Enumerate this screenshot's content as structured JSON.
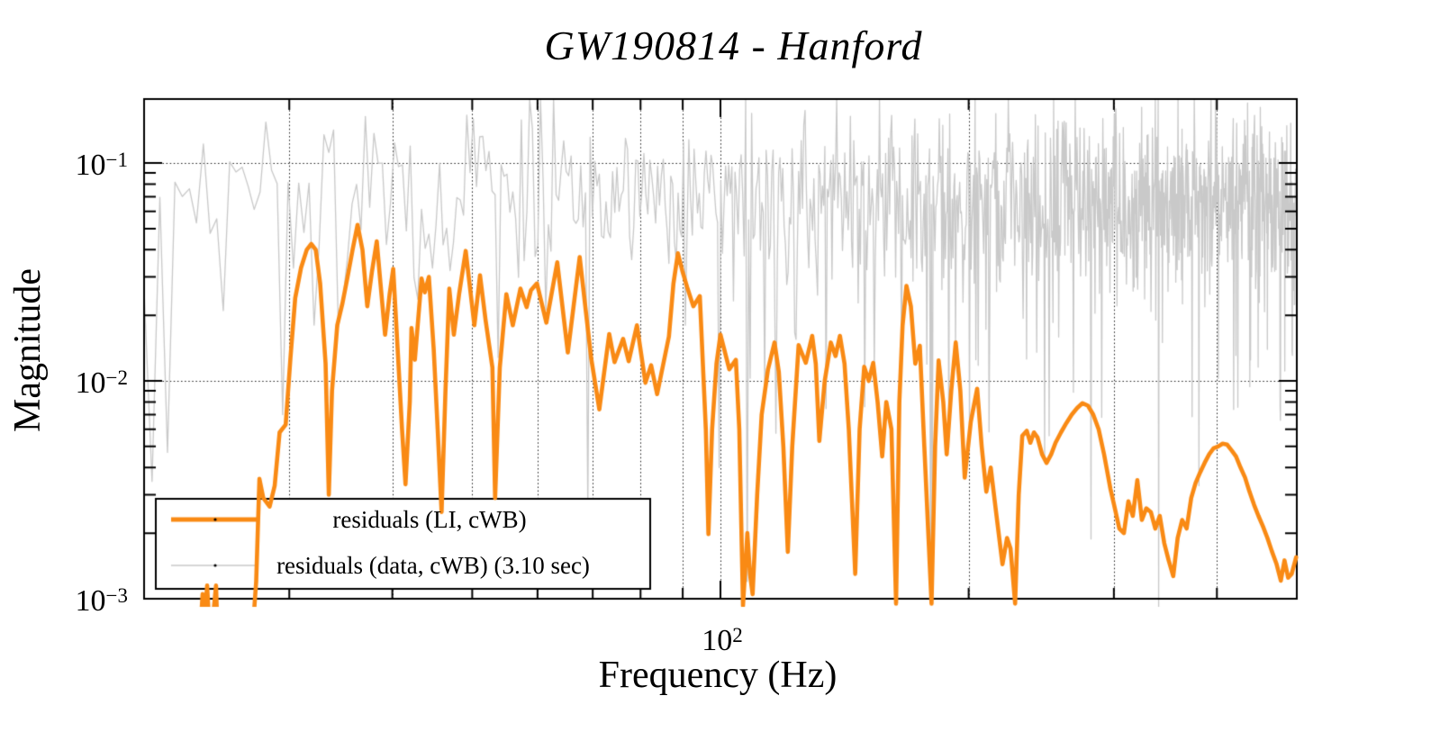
{
  "title": "GW190814 - Hanford",
  "axes": {
    "x_label": "Frequency (Hz)",
    "y_label": "Magnitude",
    "x_tick": {
      "base": "10",
      "exp": "2"
    },
    "y_ticks": [
      {
        "base": "10",
        "exp": "−1"
      },
      {
        "base": "10",
        "exp": "−2"
      },
      {
        "base": "10",
        "exp": "−3"
      }
    ]
  },
  "legend": {
    "entries": [
      {
        "label": "residuals (LI, cWB)"
      },
      {
        "label": "residuals (data, cWB) (3.10 sec)"
      }
    ]
  },
  "colors": {
    "orange_series": "#f98a14",
    "gray_series": "#c9c9c9",
    "axis": "#000000",
    "grid": "#1a1a1a",
    "background": "#ffffff"
  },
  "chart_data": {
    "type": "line",
    "title": "GW190814 - Hanford",
    "xlabel": "Frequency (Hz)",
    "ylabel": "Magnitude",
    "xscale": "log",
    "yscale": "log",
    "xlim": [
      20,
      500
    ],
    "ylim": [
      0.001,
      0.1966
    ],
    "grid": "dotted",
    "x_gridlines": [
      30,
      40,
      50,
      60,
      70,
      80,
      90,
      100,
      200,
      300,
      400
    ],
    "y_gridlines": [
      0.1,
      0.01
    ],
    "legend_position": "bottom-left",
    "series": [
      {
        "name": "residuals (LI, cWB)",
        "color": "#f98a14",
        "line_width": 4.6,
        "points": [
          [
            20,
            0.0006
          ],
          [
            22.5,
            0.0006
          ],
          [
            23.3,
            0.00055
          ],
          [
            23.55,
            0.00105
          ],
          [
            23.7,
            0.00085
          ],
          [
            23.85,
            0.00115
          ],
          [
            24.1,
            0.00055
          ],
          [
            24.3,
            0.0009
          ],
          [
            24.45,
            0.00115
          ],
          [
            24.6,
            0.00055
          ],
          [
            27.0,
            0.0006
          ],
          [
            27.35,
            0.0012
          ],
          [
            27.6,
            0.00355
          ],
          [
            27.9,
            0.0029
          ],
          [
            28.4,
            0.00265
          ],
          [
            28.8,
            0.0033
          ],
          [
            29.2,
            0.0058
          ],
          [
            29.7,
            0.0063
          ],
          [
            30.1,
            0.0128
          ],
          [
            30.5,
            0.024
          ],
          [
            31.0,
            0.033
          ],
          [
            31.5,
            0.04
          ],
          [
            31.9,
            0.0425
          ],
          [
            32.3,
            0.04
          ],
          [
            32.7,
            0.028
          ],
          [
            33.2,
            0.012
          ],
          [
            33.5,
            0.003
          ],
          [
            33.8,
            0.009
          ],
          [
            34.3,
            0.018
          ],
          [
            34.8,
            0.0227
          ],
          [
            35.3,
            0.03
          ],
          [
            35.8,
            0.04
          ],
          [
            36.3,
            0.052
          ],
          [
            36.8,
            0.04
          ],
          [
            37.3,
            0.022
          ],
          [
            37.8,
            0.032
          ],
          [
            38.3,
            0.0437
          ],
          [
            38.7,
            0.028
          ],
          [
            39.2,
            0.0163
          ],
          [
            39.7,
            0.025
          ],
          [
            40.1,
            0.0327
          ],
          [
            40.6,
            0.014
          ],
          [
            41.1,
            0.006
          ],
          [
            41.5,
            0.00335
          ],
          [
            42.0,
            0.008
          ],
          [
            42.2,
            0.0175
          ],
          [
            42.6,
            0.0125
          ],
          [
            43.4,
            0.0295
          ],
          [
            43.8,
            0.0255
          ],
          [
            44.3,
            0.03
          ],
          [
            44.9,
            0.014
          ],
          [
            45.4,
            0.006
          ],
          [
            45.9,
            0.0025
          ],
          [
            46.4,
            0.009
          ],
          [
            46.9,
            0.0265
          ],
          [
            47.5,
            0.0163
          ],
          [
            48.2,
            0.025
          ],
          [
            49.1,
            0.0395
          ],
          [
            50.3,
            0.018
          ],
          [
            51.1,
            0.0305
          ],
          [
            51.9,
            0.019
          ],
          [
            52.9,
            0.0115
          ],
          [
            53.3,
            0.0029
          ],
          [
            54.0,
            0.0115
          ],
          [
            55.0,
            0.025
          ],
          [
            56.0,
            0.018
          ],
          [
            57.2,
            0.0265
          ],
          [
            58.2,
            0.0218
          ],
          [
            58.9,
            0.026
          ],
          [
            59.9,
            0.028
          ],
          [
            61.5,
            0.0185
          ],
          [
            63.4,
            0.035
          ],
          [
            65.3,
            0.0135
          ],
          [
            67.5,
            0.037
          ],
          [
            69.7,
            0.0127
          ],
          [
            71.3,
            0.0074
          ],
          [
            73.3,
            0.0164
          ],
          [
            74.4,
            0.0122
          ],
          [
            76.2,
            0.0156
          ],
          [
            77.4,
            0.0123
          ],
          [
            79.2,
            0.018
          ],
          [
            81.1,
            0.0098
          ],
          [
            82.4,
            0.0118
          ],
          [
            83.8,
            0.0087
          ],
          [
            86.6,
            0.016
          ],
          [
            87.7,
            0.028
          ],
          [
            88.8,
            0.0385
          ],
          [
            89.9,
            0.032
          ],
          [
            91.1,
            0.027
          ],
          [
            92.7,
            0.022
          ],
          [
            94.4,
            0.0245
          ],
          [
            96.0,
            0.006
          ],
          [
            96.7,
            0.00198
          ],
          [
            97.7,
            0.006
          ],
          [
            98.9,
            0.012
          ],
          [
            100,
            0.0163
          ],
          [
            102.5,
            0.0113
          ],
          [
            104.4,
            0.0125
          ],
          [
            105.4,
            0.006
          ],
          [
            106.5,
            0.00093
          ],
          [
            107.8,
            0.002
          ],
          [
            108.6,
            0.0013
          ],
          [
            109.4,
            0.00105
          ],
          [
            110.8,
            0.003
          ],
          [
            112.2,
            0.007
          ],
          [
            114.2,
            0.0113
          ],
          [
            116.3,
            0.015
          ],
          [
            117.7,
            0.011
          ],
          [
            119.2,
            0.005
          ],
          [
            120.7,
            0.00164
          ],
          [
            122.2,
            0.005
          ],
          [
            124.4,
            0.0146
          ],
          [
            126.9,
            0.0121
          ],
          [
            129.2,
            0.0161
          ],
          [
            130.5,
            0.012
          ],
          [
            131.8,
            0.0053
          ],
          [
            133.8,
            0.01
          ],
          [
            136.1,
            0.015
          ],
          [
            137.9,
            0.013
          ],
          [
            139.6,
            0.0161
          ],
          [
            141.4,
            0.012
          ],
          [
            143.1,
            0.006
          ],
          [
            145.7,
            0.0013
          ],
          [
            147.5,
            0.006
          ],
          [
            149.4,
            0.0116
          ],
          [
            151.3,
            0.01
          ],
          [
            153.2,
            0.0121
          ],
          [
            155.1,
            0.008
          ],
          [
            157.1,
            0.0045
          ],
          [
            158.9,
            0.008
          ],
          [
            161.2,
            0.006
          ],
          [
            163.3,
            0.00095
          ],
          [
            164.8,
            0.008
          ],
          [
            166.3,
            0.018
          ],
          [
            168.1,
            0.0273
          ],
          [
            170.2,
            0.022
          ],
          [
            172.3,
            0.012
          ],
          [
            174.5,
            0.0145
          ],
          [
            176.7,
            0.005
          ],
          [
            178.9,
            0.0018
          ],
          [
            180.3,
            0.00095
          ],
          [
            182.1,
            0.005
          ],
          [
            183.9,
            0.0124
          ],
          [
            186.3,
            0.008
          ],
          [
            188.1,
            0.0046
          ],
          [
            190.5,
            0.009
          ],
          [
            192.9,
            0.015
          ],
          [
            195.4,
            0.009
          ],
          [
            197.8,
            0.0036
          ],
          [
            201.2,
            0.0065
          ],
          [
            204.8,
            0.0092
          ],
          [
            207.4,
            0.005
          ],
          [
            210.1,
            0.0031
          ],
          [
            212.7,
            0.004
          ],
          [
            215.9,
            0.0025
          ],
          [
            219.8,
            0.00144
          ],
          [
            222.6,
            0.0019
          ],
          [
            224.8,
            0.0017
          ],
          [
            227.7,
            0.00095
          ],
          [
            230.0,
            0.003
          ],
          [
            232.3,
            0.0056
          ],
          [
            235.2,
            0.0059
          ],
          [
            237.6,
            0.0052
          ],
          [
            240.0,
            0.0058
          ],
          [
            242.4,
            0.0055
          ],
          [
            245.5,
            0.0046
          ],
          [
            248.6,
            0.0042
          ],
          [
            251.8,
            0.0046
          ],
          [
            254.9,
            0.0052
          ],
          [
            258.8,
            0.0058
          ],
          [
            262.7,
            0.0064
          ],
          [
            266.7,
            0.007
          ],
          [
            270.7,
            0.0075
          ],
          [
            274.8,
            0.0079
          ],
          [
            279.0,
            0.0077
          ],
          [
            283.2,
            0.007
          ],
          [
            287.5,
            0.006
          ],
          [
            291.9,
            0.0046
          ],
          [
            297.1,
            0.0032
          ],
          [
            300.8,
            0.0026
          ],
          [
            304.6,
            0.0021
          ],
          [
            308.5,
            0.002
          ],
          [
            312.4,
            0.0028
          ],
          [
            316.3,
            0.0024
          ],
          [
            320.3,
            0.0035
          ],
          [
            324.4,
            0.0023
          ],
          [
            328.4,
            0.0026
          ],
          [
            332.6,
            0.0025
          ],
          [
            336.8,
            0.0021
          ],
          [
            341.0,
            0.0024
          ],
          [
            345.3,
            0.0018
          ],
          [
            349.6,
            0.0015
          ],
          [
            354.1,
            0.00127
          ],
          [
            358.5,
            0.0019
          ],
          [
            363.0,
            0.0023
          ],
          [
            367.6,
            0.0021
          ],
          [
            372.3,
            0.0029
          ],
          [
            376.9,
            0.0034
          ],
          [
            381.7,
            0.0038
          ],
          [
            386.5,
            0.0042
          ],
          [
            391.4,
            0.0046
          ],
          [
            396.3,
            0.0049
          ],
          [
            401.4,
            0.005
          ],
          [
            406.4,
            0.00515
          ],
          [
            411.5,
            0.0051
          ],
          [
            416.7,
            0.0048
          ],
          [
            421.9,
            0.0045
          ],
          [
            427.3,
            0.004
          ],
          [
            432.7,
            0.0036
          ],
          [
            438.1,
            0.0031
          ],
          [
            443.7,
            0.0027
          ],
          [
            449.2,
            0.0024
          ],
          [
            454.9,
            0.00215
          ],
          [
            460.6,
            0.0019
          ],
          [
            466.4,
            0.00165
          ],
          [
            472.3,
            0.00145
          ],
          [
            478.2,
            0.00121
          ],
          [
            483.1,
            0.0015
          ],
          [
            488.0,
            0.00125
          ],
          [
            492.9,
            0.0013
          ],
          [
            499.1,
            0.00155
          ]
        ]
      },
      {
        "name": "residuals (data, cWB) (3.10 sec)",
        "color": "#c9c9c9",
        "line_width": 1.3,
        "duration_label_sec": 3.1,
        "envelope_median": 0.068,
        "envelope_range": [
          0.01,
          0.1966
        ],
        "generated_noise": {
          "f_start": 20,
          "f_end": 500,
          "step_hz": 0.45,
          "seed": 1190814,
          "log10_median": -1.17,
          "log10_sigma": 0.21,
          "low_f_boost_decades": 0.1,
          "low_f_boost_decay_hz": 6,
          "dip_probability": 0.07,
          "dip_extra_decades": [
            0.15,
            1.3
          ],
          "clip": [
            0.00075,
            0.1966
          ]
        },
        "notches": [
          [
            21.2,
            0.0047
          ],
          [
            25.1,
            0.021
          ],
          [
            107.8,
            0.0012
          ],
          [
            180.5,
            0.0012
          ],
          [
            250.5,
            0.0056
          ],
          [
            290.0,
            0.0068
          ],
          [
            340.0,
            0.00085
          ]
        ]
      }
    ]
  }
}
